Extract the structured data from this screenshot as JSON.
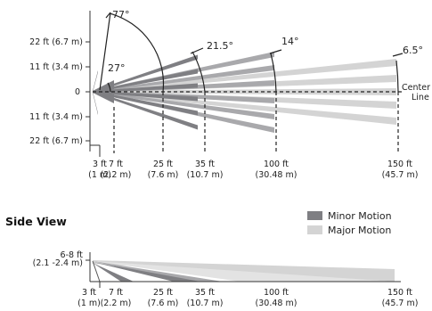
{
  "top_view": {
    "y_labels": [
      "22 ft (6.7 m)",
      "11 ft (3.4 m)",
      "0",
      "11 ft (3.4 m)",
      "22 ft (6.7 m)"
    ],
    "angles": [
      "77°",
      "27°",
      "21.5°",
      "14°",
      "6.5°"
    ],
    "center_line": [
      "Center",
      "Line"
    ],
    "x_labels": [
      {
        "ft": "3 ft",
        "m": "(1 m)"
      },
      {
        "ft": "7 ft",
        "m": "(2.2 m)"
      },
      {
        "ft": "25 ft",
        "m": "(7.6 m)"
      },
      {
        "ft": "35 ft",
        "m": "(10.7 m)"
      },
      {
        "ft": "100 ft",
        "m": "(30.48 m)"
      },
      {
        "ft": "150 ft",
        "m": "(45.7 m)"
      }
    ]
  },
  "side_view": {
    "title": "Side View",
    "height_label": [
      "6-8 ft",
      "(2.1 -2.4 m)"
    ],
    "x_labels": [
      {
        "ft": "3 ft",
        "m": "(1 m)"
      },
      {
        "ft": "7 ft",
        "m": "(2.2 m)"
      },
      {
        "ft": "25 ft",
        "m": "(7.6 m)"
      },
      {
        "ft": "35 ft",
        "m": "(10.7 m)"
      },
      {
        "ft": "100 ft",
        "m": "(30.48 m)"
      },
      {
        "ft": "150 ft",
        "m": "(45.7 m)"
      }
    ]
  },
  "legend": {
    "minor": {
      "label": "Minor Motion",
      "color": "#7f7f83"
    },
    "major": {
      "label": "Major Motion",
      "color": "#d4d4d4"
    }
  },
  "colors": {
    "dark_beam": "#7f7f83",
    "mid_beam": "#a9a9ac",
    "light_beam": "#d4d4d4"
  }
}
